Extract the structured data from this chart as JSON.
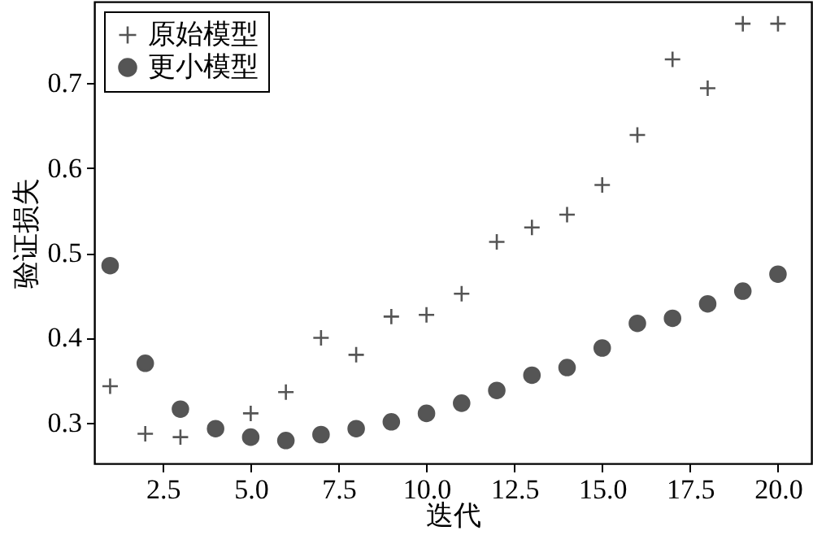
{
  "chart_data": {
    "type": "scatter",
    "xlabel": "迭代",
    "ylabel": "验证损失",
    "x": [
      1,
      2,
      3,
      4,
      5,
      6,
      7,
      8,
      9,
      10,
      11,
      12,
      13,
      14,
      15,
      16,
      17,
      18,
      19,
      20
    ],
    "series": [
      {
        "name": "原始模型",
        "color": "#555555",
        "marker": "cross",
        "values": [
          0.343,
          0.287,
          0.283,
          null,
          0.311,
          0.336,
          0.4,
          0.38,
          0.425,
          0.427,
          0.452,
          0.513,
          0.53,
          0.545,
          0.58,
          0.639,
          0.728,
          0.694,
          0.77,
          0.77
        ]
      },
      {
        "name": "更小模型",
        "color": "#555555",
        "marker": "circle",
        "values": [
          0.485,
          0.37,
          0.316,
          0.293,
          0.283,
          0.279,
          0.286,
          0.293,
          0.301,
          0.311,
          0.323,
          0.338,
          0.356,
          0.365,
          0.388,
          0.417,
          0.423,
          0.44,
          0.455,
          0.475
        ]
      }
    ],
    "xlim": [
      0.55,
      20.95
    ],
    "ylim": [
      0.252,
      0.796
    ],
    "xticks": [
      {
        "value": 2.5,
        "label": "2.5"
      },
      {
        "value": 5,
        "label": "5.0"
      },
      {
        "value": 7.5,
        "label": "7.5"
      },
      {
        "value": 10,
        "label": "10.0"
      },
      {
        "value": 12.5,
        "label": "12.5"
      },
      {
        "value": 15,
        "label": "15.0"
      },
      {
        "value": 17.5,
        "label": "17.5"
      },
      {
        "value": 20,
        "label": "20.0"
      }
    ],
    "yticks": [
      0.3,
      0.4,
      0.5,
      0.6,
      0.7
    ],
    "grid": false,
    "legend": "top left"
  }
}
